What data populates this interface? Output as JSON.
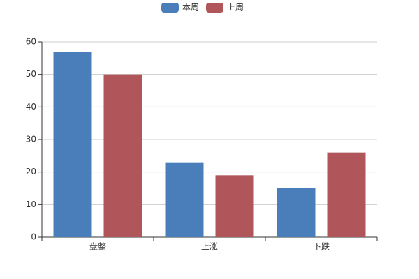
{
  "chart_data": {
    "type": "bar",
    "categories": [
      "盘整",
      "上涨",
      "下跌"
    ],
    "series": [
      {
        "name": "本周",
        "color": "#4a7ebb",
        "values": [
          57,
          23,
          15
        ]
      },
      {
        "name": "上周",
        "color": "#b0565a",
        "values": [
          50,
          19,
          26
        ]
      }
    ],
    "ylim": [
      0,
      60
    ],
    "yticks": [
      0,
      10,
      20,
      30,
      40,
      50,
      60
    ],
    "grid": true,
    "legend": "top"
  }
}
